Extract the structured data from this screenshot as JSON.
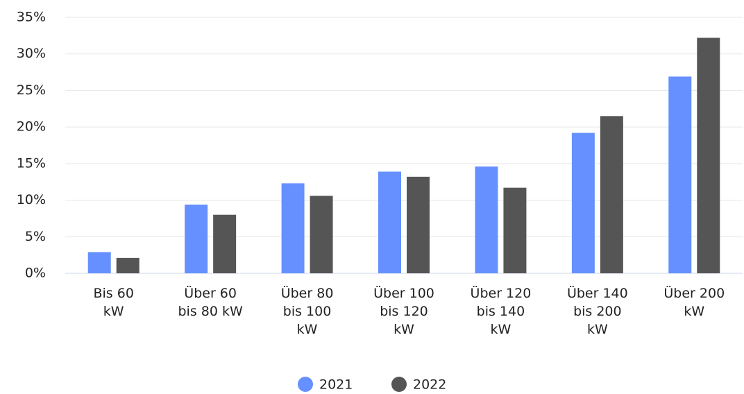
{
  "chart_data": {
    "type": "bar",
    "categories": [
      "Bis 60\nkW",
      "Über 60\nbis 80 kW",
      "Über 80\nbis 100\nkW",
      "Über 100\nbis 120\nkW",
      "Über 120\nbis 140\nkW",
      "Über 140\nbis 200\nkW",
      "Über 200\nkW"
    ],
    "series": [
      {
        "name": "2021",
        "color": "#6690ff",
        "values": [
          2.9,
          9.4,
          12.3,
          13.9,
          14.6,
          19.2,
          26.9
        ]
      },
      {
        "name": "2022",
        "color": "#555555",
        "values": [
          2.1,
          8.0,
          10.6,
          13.2,
          11.7,
          21.5,
          32.2
        ]
      }
    ],
    "ylim": [
      0,
      35
    ],
    "yticks": [
      {
        "value": 0,
        "label": "0%"
      },
      {
        "value": 5,
        "label": "5%"
      },
      {
        "value": 10,
        "label": "10%"
      },
      {
        "value": 15,
        "label": "15%"
      },
      {
        "value": 20,
        "label": "20%"
      },
      {
        "value": 25,
        "label": "25%"
      },
      {
        "value": 30,
        "label": "30%"
      },
      {
        "value": 35,
        "label": "35%"
      }
    ],
    "grid": true,
    "legend": "bottom"
  }
}
